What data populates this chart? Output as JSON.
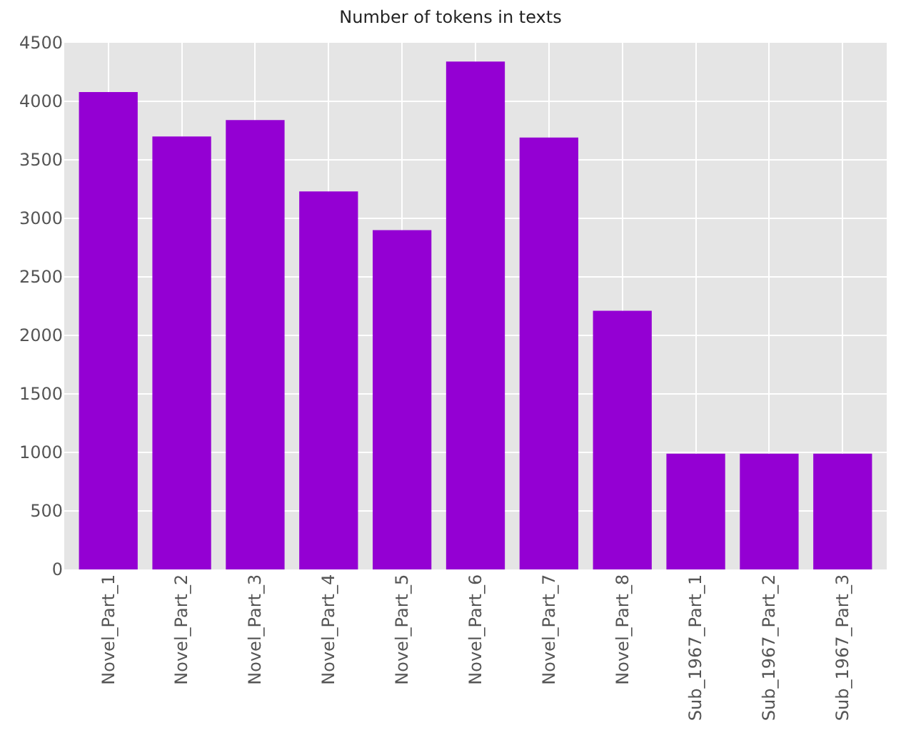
{
  "chart_data": {
    "type": "bar",
    "title": "Number of tokens in texts",
    "categories": [
      "Novel_Part_1",
      "Novel_Part_2",
      "Novel_Part_3",
      "Novel_Part_4",
      "Novel_Part_5",
      "Novel_Part_6",
      "Novel_Part_7",
      "Novel_Part_8",
      "Sub_1967_Part_1",
      "Sub_1967_Part_2",
      "Sub_1967_Part_3"
    ],
    "values": [
      4080,
      3700,
      3840,
      3230,
      2900,
      4340,
      3690,
      2210,
      990,
      990,
      990
    ],
    "color": "#9400d3",
    "ylim": [
      0,
      4500
    ],
    "yticks": [
      0,
      500,
      1000,
      1500,
      2000,
      2500,
      3000,
      3500,
      4000,
      4500
    ],
    "grid": true
  }
}
